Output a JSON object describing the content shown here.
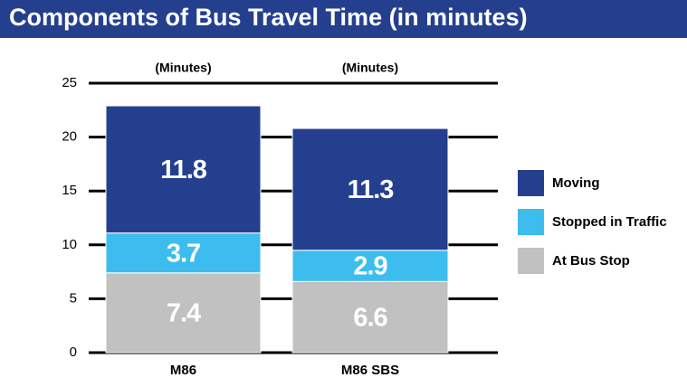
{
  "chart_data": {
    "type": "stacked_bar",
    "title": "Components of Bus Travel Time (in minutes)",
    "categories": [
      "M86",
      "M86 SBS"
    ],
    "bar_annotations": [
      "(Minutes)",
      "(Minutes)"
    ],
    "series": [
      {
        "name": "At Bus Stop",
        "color": "#c1c1c1",
        "values": [
          7.4,
          6.6
        ]
      },
      {
        "name": "Stopped in Traffic",
        "color": "#3cbdee",
        "values": [
          3.7,
          2.9
        ]
      },
      {
        "name": "Moving",
        "color": "#253f8f",
        "values": [
          11.8,
          11.3
        ]
      }
    ],
    "ylim": [
      0,
      25
    ],
    "yticks": [
      0,
      5,
      10,
      15,
      20,
      25
    ],
    "grid": true,
    "legend": "right"
  }
}
